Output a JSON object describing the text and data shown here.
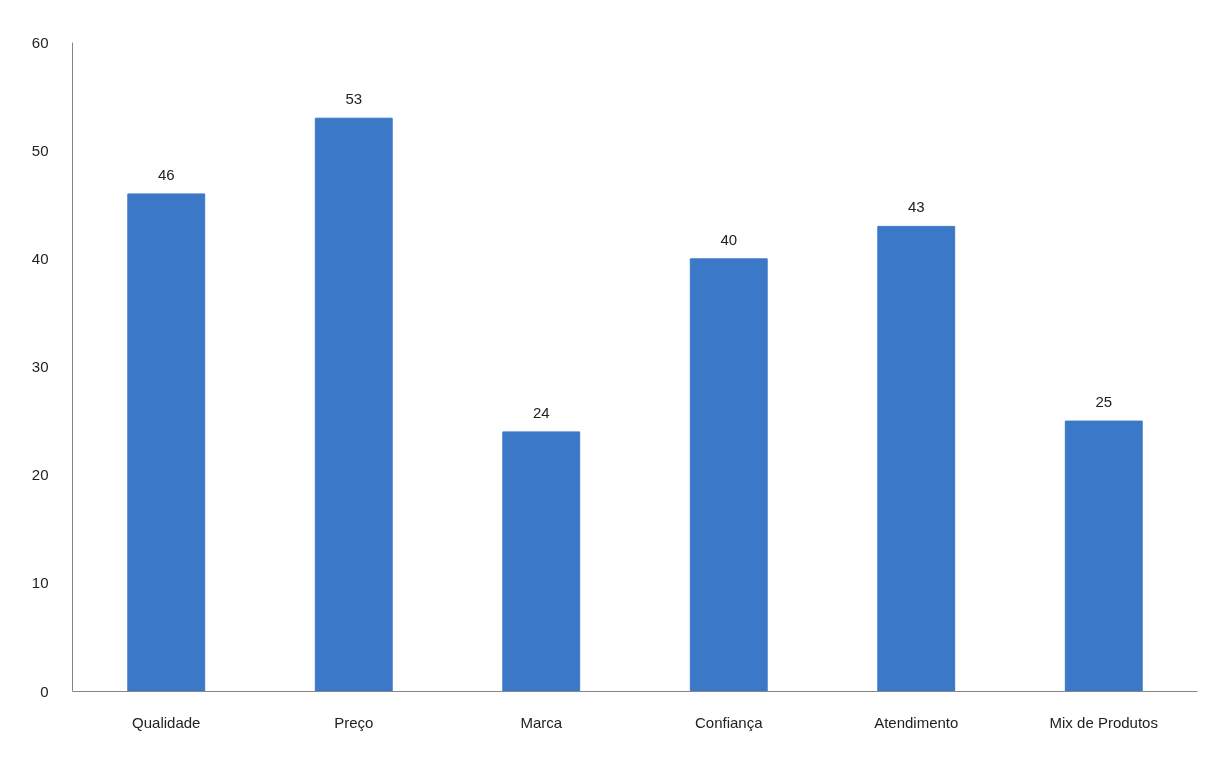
{
  "chart_data": {
    "type": "bar",
    "categories": [
      "Qualidade",
      "Preço",
      "Marca",
      "Confiança",
      "Atendimento",
      "Mix de Produtos"
    ],
    "values": [
      46,
      53,
      24,
      40,
      43,
      25
    ],
    "color": "#3c78c8",
    "ylim": [
      0,
      60
    ],
    "yticks": [
      0,
      10,
      20,
      30,
      40,
      50,
      60
    ],
    "data_labels": true
  }
}
